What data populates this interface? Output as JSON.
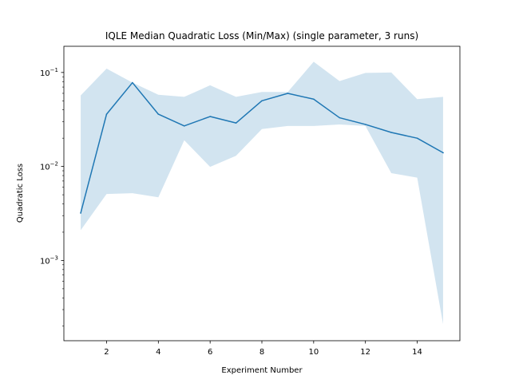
{
  "chart_data": {
    "type": "line",
    "title": "IQLE Median Quadratic Loss (Min/Max) (single parameter, 3 runs)",
    "xlabel": "Experiment Number",
    "ylabel": "Quadratic Loss",
    "xlim": [
      0.35,
      15.65
    ],
    "ylim": [
      0.00014,
      0.19
    ],
    "yscale": "log",
    "grid": false,
    "x_ticks": [
      2,
      4,
      6,
      8,
      10,
      12,
      14
    ],
    "x_tick_labels": [
      "2",
      "4",
      "6",
      "8",
      "10",
      "12",
      "14"
    ],
    "y_ticks": [
      0.001,
      0.01,
      0.1
    ],
    "y_tick_labels": [
      {
        "base": "10",
        "exp": "−3"
      },
      {
        "base": "10",
        "exp": "−2"
      },
      {
        "base": "10",
        "exp": "−1"
      }
    ],
    "x": [
      1,
      2,
      3,
      4,
      5,
      6,
      7,
      8,
      9,
      10,
      11,
      12,
      13,
      14,
      15
    ],
    "series": [
      {
        "kind": "line",
        "color": "#1f77b4",
        "values": [
          0.0032,
          0.036,
          0.078,
          0.036,
          0.027,
          0.034,
          0.029,
          0.05,
          0.06,
          0.052,
          0.033,
          0.028,
          0.023,
          0.02,
          0.014
        ]
      },
      {
        "kind": "band",
        "color": "#1f77b4",
        "opacity": 0.2,
        "lower": [
          0.0021,
          0.0051,
          0.0052,
          0.0047,
          0.019,
          0.0099,
          0.013,
          0.025,
          0.027,
          0.027,
          0.028,
          0.027,
          0.0085,
          0.0076,
          0.00021
        ],
        "upper": [
          0.057,
          0.11,
          0.078,
          0.058,
          0.055,
          0.073,
          0.055,
          0.062,
          0.062,
          0.13,
          0.081,
          0.099,
          0.1,
          0.052,
          0.055
        ]
      }
    ]
  }
}
